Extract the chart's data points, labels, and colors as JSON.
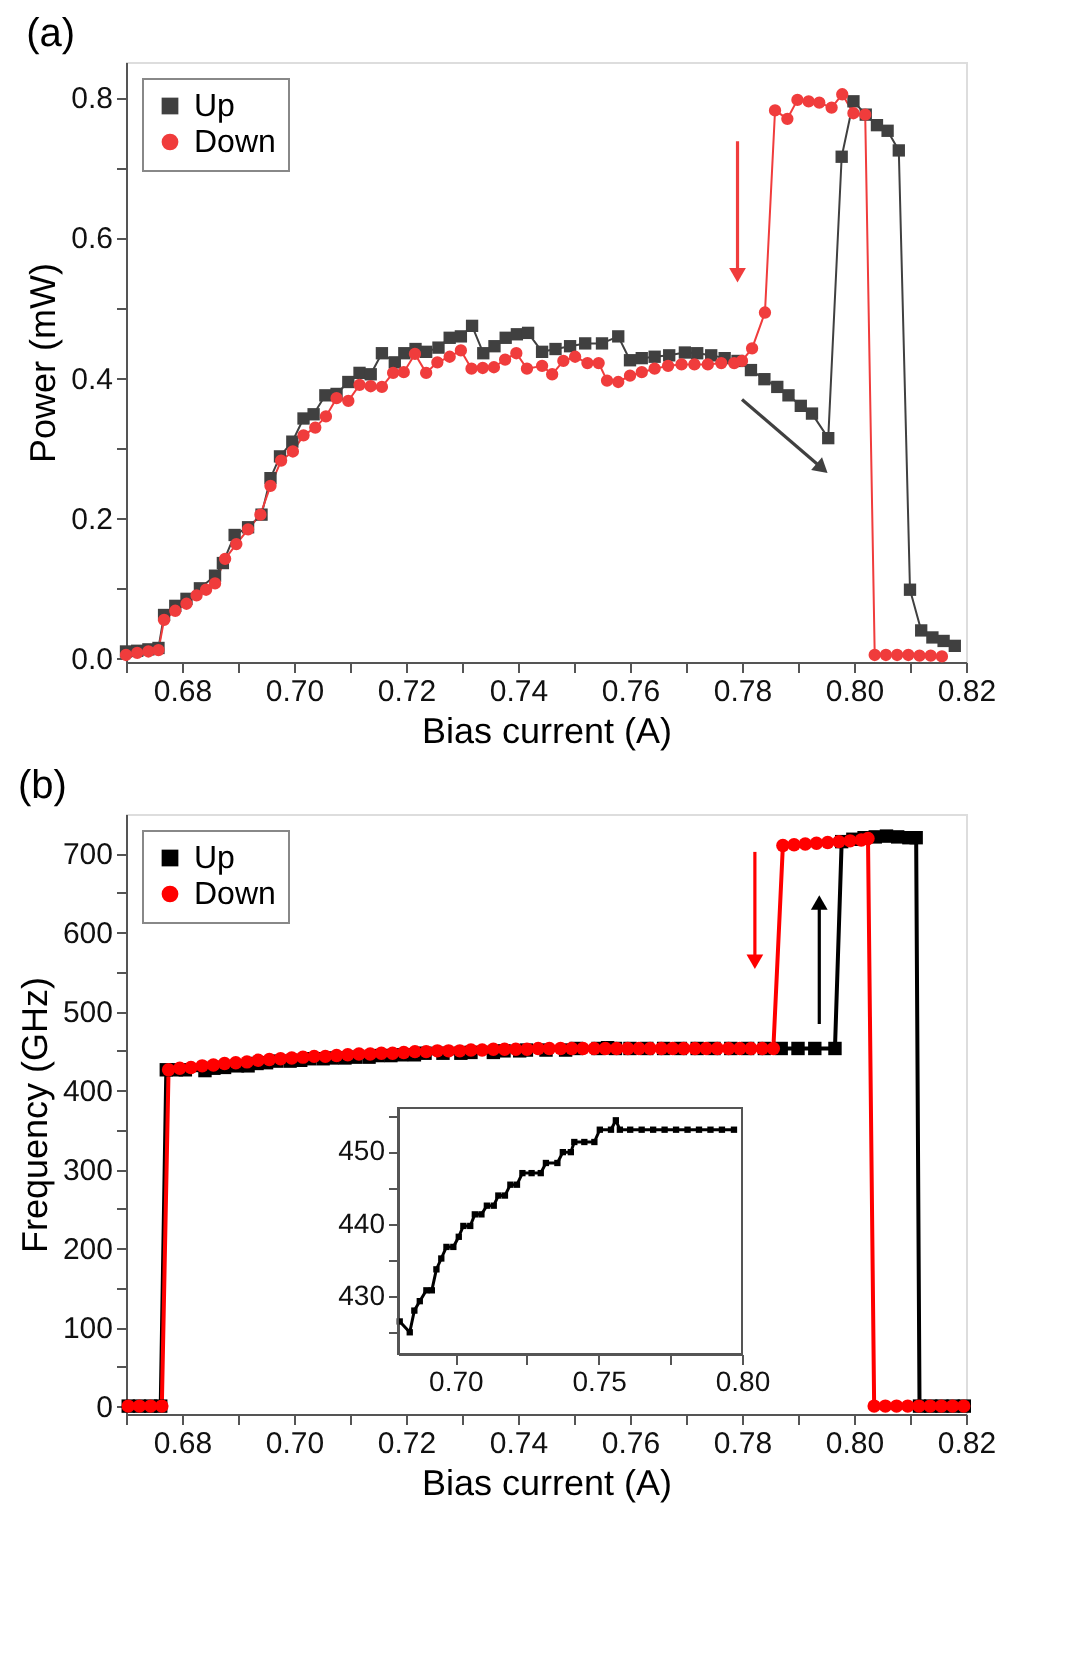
{
  "chart_data": [
    {
      "type": "line",
      "title": "(a)",
      "xlabel": "Bias current (A)",
      "ylabel": "Power (mW)",
      "legend": "top left",
      "xlim": [
        0.67,
        0.82
      ],
      "ylim": [
        -0.005,
        0.85
      ],
      "xticks": [
        {
          "value": 0.67,
          "label": null
        },
        0.68,
        {
          "value": 0.69,
          "label": null
        },
        {
          "value": 0.7,
          "label": "0.70"
        },
        {
          "value": 0.71,
          "label": null
        },
        0.72,
        {
          "value": 0.73,
          "label": null
        },
        0.74,
        {
          "value": 0.75,
          "label": null
        },
        0.76,
        {
          "value": 0.77,
          "label": null
        },
        0.78,
        {
          "value": 0.79,
          "label": null
        },
        {
          "value": 0.8,
          "label": "0.80"
        },
        {
          "value": 0.81,
          "label": null
        },
        0.82
      ],
      "yticks": [
        {
          "value": 0,
          "label": "0.0"
        },
        {
          "value": 0.1,
          "label": null
        },
        0.2,
        {
          "value": 0.3,
          "label": null
        },
        0.4,
        {
          "value": 0.5,
          "label": null
        },
        0.6,
        {
          "value": 0.7,
          "label": null
        },
        0.8
      ],
      "series": [
        {
          "name": "Up",
          "color": "#404040",
          "marker": "square",
          "x": [
            0.67,
            0.672,
            0.674,
            0.6758,
            0.6768,
            0.6788,
            0.6808,
            0.6832,
            0.6859,
            0.6873,
            0.6894,
            0.6918,
            0.6942,
            0.6958,
            0.6975,
            0.6997,
            0.7017,
            0.7035,
            0.7056,
            0.7076,
            0.7097,
            0.7117,
            0.7137,
            0.7157,
            0.718,
            0.7197,
            0.7217,
            0.7236,
            0.7258,
            0.7278,
            0.7298,
            0.7318,
            0.7338,
            0.7358,
            0.7378,
            0.7398,
            0.7418,
            0.7443,
            0.7467,
            0.7493,
            0.752,
            0.755,
            0.7579,
            0.76,
            0.7621,
            0.7644,
            0.767,
            0.7698,
            0.772,
            0.7745,
            0.7769,
            0.7792,
            0.7816,
            0.784,
            0.7863,
            0.7883,
            0.7905,
            0.7925,
            0.7954,
            0.7978,
            0.7999,
            0.8021,
            0.8041,
            0.806,
            0.808,
            0.81,
            0.812,
            0.814,
            0.816,
            0.818
          ],
          "values": [
            0.01,
            0.011,
            0.013,
            0.015,
            0.062,
            0.075,
            0.085,
            0.1,
            0.118,
            0.136,
            0.176,
            0.187,
            0.205,
            0.257,
            0.288,
            0.309,
            0.342,
            0.348,
            0.375,
            0.377,
            0.394,
            0.407,
            0.405,
            0.435,
            0.422,
            0.435,
            0.441,
            0.437,
            0.443,
            0.457,
            0.459,
            0.474,
            0.435,
            0.445,
            0.457,
            0.462,
            0.464,
            0.437,
            0.441,
            0.445,
            0.449,
            0.449,
            0.459,
            0.425,
            0.428,
            0.43,
            0.432,
            0.436,
            0.435,
            0.432,
            0.428,
            0.424,
            0.411,
            0.398,
            0.387,
            0.375,
            0.36,
            0.349,
            0.314,
            0.715,
            0.794,
            0.775,
            0.76,
            0.752,
            0.724,
            0.098,
            0.04,
            0.03,
            0.025,
            0.018
          ]
        },
        {
          "name": "Down",
          "color": "#f03c3c",
          "marker": "circle",
          "x": [
            0.67,
            0.672,
            0.674,
            0.6758,
            0.6768,
            0.6788,
            0.6808,
            0.6826,
            0.6843,
            0.6859,
            0.6877,
            0.6897,
            0.6918,
            0.694,
            0.6958,
            0.6977,
            0.6998,
            0.7017,
            0.7038,
            0.7057,
            0.7076,
            0.7097,
            0.7117,
            0.7137,
            0.7157,
            0.7177,
            0.7196,
            0.7216,
            0.7236,
            0.7256,
            0.7278,
            0.7298,
            0.7317,
            0.7337,
            0.7357,
            0.7377,
            0.7397,
            0.7416,
            0.7443,
            0.7461,
            0.7481,
            0.7502,
            0.7524,
            0.7544,
            0.7559,
            0.7579,
            0.76,
            0.7621,
            0.7644,
            0.7668,
            0.7692,
            0.7715,
            0.7739,
            0.7763,
            0.7786,
            0.78,
            0.7818,
            0.7841,
            0.7859,
            0.7881,
            0.7899,
            0.7919,
            0.7938,
            0.796,
            0.7979,
            0.7999,
            0.802,
            0.8037,
            0.8057,
            0.8077,
            0.8097,
            0.8117,
            0.8137,
            0.8157
          ],
          "values": [
            0.005,
            0.008,
            0.01,
            0.012,
            0.055,
            0.068,
            0.078,
            0.09,
            0.098,
            0.107,
            0.142,
            0.163,
            0.184,
            0.205,
            0.246,
            0.282,
            0.295,
            0.318,
            0.329,
            0.345,
            0.371,
            0.367,
            0.39,
            0.388,
            0.387,
            0.407,
            0.408,
            0.434,
            0.407,
            0.422,
            0.43,
            0.439,
            0.413,
            0.414,
            0.415,
            0.426,
            0.435,
            0.413,
            0.417,
            0.405,
            0.424,
            0.43,
            0.421,
            0.421,
            0.396,
            0.394,
            0.403,
            0.408,
            0.413,
            0.417,
            0.419,
            0.419,
            0.419,
            0.421,
            0.421,
            0.424,
            0.442,
            0.493,
            0.781,
            0.769,
            0.796,
            0.794,
            0.792,
            0.785,
            0.804,
            0.777,
            0.775,
            0.005,
            0.005,
            0.005,
            0.005,
            0.004,
            0.004,
            0.003
          ]
        }
      ]
    },
    {
      "type": "line",
      "title": "(b)",
      "xlabel": "Bias current (A)",
      "ylabel": "Frequency (GHz)",
      "legend": "top left",
      "xlim": [
        0.67,
        0.82
      ],
      "ylim": [
        -10,
        750
      ],
      "xticks": [
        {
          "value": 0.67,
          "label": null
        },
        0.68,
        {
          "value": 0.69,
          "label": null
        },
        {
          "value": 0.7,
          "label": "0.70"
        },
        {
          "value": 0.71,
          "label": null
        },
        0.72,
        {
          "value": 0.73,
          "label": null
        },
        0.74,
        {
          "value": 0.75,
          "label": null
        },
        0.76,
        {
          "value": 0.77,
          "label": null
        },
        0.78,
        {
          "value": 0.79,
          "label": null
        },
        {
          "value": 0.8,
          "label": "0.80"
        },
        {
          "value": 0.81,
          "label": null
        },
        0.82
      ],
      "yticks": [
        0,
        {
          "value": 50,
          "label": null
        },
        100,
        {
          "value": 150,
          "label": null
        },
        200,
        {
          "value": 250,
          "label": null
        },
        300,
        {
          "value": 350,
          "label": null
        },
        400,
        {
          "value": 450,
          "label": null
        },
        500,
        {
          "value": 550,
          "label": null
        },
        600,
        {
          "value": 650,
          "label": null
        },
        700
      ],
      "series": [
        {
          "name": "Up",
          "color": "#000000",
          "marker": "square",
          "x": [
            0.6704,
            0.6724,
            0.6744,
            0.6762,
            0.6772,
            0.679,
            0.6806,
            0.6841,
            0.6857,
            0.6876,
            0.6899,
            0.6918,
            0.6934,
            0.6951,
            0.6969,
            0.6993,
            0.7012,
            0.7028,
            0.7052,
            0.7068,
            0.7091,
            0.711,
            0.7134,
            0.715,
            0.7173,
            0.7192,
            0.7215,
            0.7234,
            0.7266,
            0.7298,
            0.7316,
            0.7356,
            0.7375,
            0.7403,
            0.7415,
            0.745,
            0.7485,
            0.7504,
            0.7543,
            0.756,
            0.7574,
            0.76,
            0.763,
            0.766,
            0.769,
            0.772,
            0.775,
            0.778,
            0.781,
            0.784,
            0.787,
            0.79,
            0.793,
            0.7966,
            0.7978,
            0.7998,
            0.8018,
            0.8038,
            0.8058,
            0.8078,
            0.8098,
            0.8111,
            0.8117,
            0.8137,
            0.8157,
            0.8177,
            0.8197
          ],
          "values": [
            0,
            0,
            0,
            0,
            426,
            426,
            426,
            425,
            428,
            429,
            431,
            431,
            434,
            435,
            437,
            437,
            438,
            440,
            440,
            441,
            441,
            442,
            442,
            444,
            444,
            445,
            445,
            447,
            447,
            447,
            448,
            448,
            450,
            450,
            451,
            451,
            451,
            453,
            453,
            454,
            453,
            453,
            453,
            453,
            453,
            453,
            453,
            453,
            453,
            453,
            453,
            453,
            453,
            453,
            715,
            718,
            720,
            721,
            722,
            721,
            720,
            720,
            0,
            0,
            0,
            0,
            0
          ]
        },
        {
          "name": "Down",
          "color": "#ff0000",
          "marker": "circle",
          "x": [
            0.6704,
            0.6724,
            0.6744,
            0.6764,
            0.6776,
            0.6796,
            0.6816,
            0.6836,
            0.6856,
            0.6876,
            0.6896,
            0.6916,
            0.6936,
            0.6956,
            0.6976,
            0.6996,
            0.7016,
            0.7036,
            0.7056,
            0.7076,
            0.7096,
            0.7116,
            0.7136,
            0.7156,
            0.7176,
            0.7196,
            0.7216,
            0.7236,
            0.7256,
            0.7276,
            0.7296,
            0.7316,
            0.7336,
            0.7356,
            0.7376,
            0.7396,
            0.7416,
            0.7436,
            0.7456,
            0.7476,
            0.7496,
            0.7516,
            0.7536,
            0.7556,
            0.7576,
            0.7596,
            0.7616,
            0.7636,
            0.7656,
            0.7676,
            0.7696,
            0.7716,
            0.7736,
            0.7756,
            0.7776,
            0.7796,
            0.7816,
            0.7836,
            0.7856,
            0.7873,
            0.7893,
            0.7913,
            0.7933,
            0.7953,
            0.7973,
            0.7993,
            0.8013,
            0.8025,
            0.8036,
            0.8056,
            0.8076,
            0.8096,
            0.8116,
            0.8136,
            0.8156,
            0.8176,
            0.8196
          ],
          "values": [
            0,
            0,
            0,
            0,
            426,
            428,
            429,
            431,
            432,
            434,
            435,
            436,
            438,
            439,
            440,
            441,
            442,
            443,
            443,
            444,
            445,
            446,
            446,
            447,
            447,
            448,
            449,
            449,
            450,
            450,
            450,
            451,
            451,
            452,
            452,
            452,
            452,
            453,
            453,
            453,
            453,
            453,
            453,
            453,
            453,
            453,
            453,
            453,
            453,
            453,
            453,
            453,
            453,
            453,
            453,
            453,
            453,
            453,
            453,
            710,
            711,
            712,
            713,
            714,
            715,
            716,
            717,
            719,
            0,
            0,
            0,
            0,
            0,
            0,
            0,
            0,
            0
          ]
        }
      ]
    },
    {
      "type": "line",
      "xlim": [
        0.68,
        0.8
      ],
      "ylim": [
        422,
        456
      ],
      "xticks": [
        {
          "value": 0.7,
          "label": "0.70"
        },
        {
          "value": 0.725,
          "label": null
        },
        0.75,
        {
          "value": 0.775,
          "label": null
        },
        {
          "value": 0.8,
          "label": "0.80"
        }
      ],
      "yticks": [
        {
          "value": 425,
          "label": null
        },
        430,
        {
          "value": 435,
          "label": null
        },
        440,
        {
          "value": 445,
          "label": null
        },
        450,
        {
          "value": 455,
          "label": null
        }
      ],
      "series": [
        {
          "color": "#000000",
          "marker": "square",
          "x": [
            0.6806,
            0.6841,
            0.6857,
            0.6876,
            0.6899,
            0.6918,
            0.6934,
            0.6951,
            0.6969,
            0.6993,
            0.7012,
            0.7028,
            0.7052,
            0.7068,
            0.7091,
            0.711,
            0.7134,
            0.715,
            0.7173,
            0.7192,
            0.7215,
            0.7234,
            0.7266,
            0.7298,
            0.7316,
            0.7356,
            0.7375,
            0.7403,
            0.7415,
            0.745,
            0.7485,
            0.7504,
            0.7543,
            0.756,
            0.7574,
            0.761,
            0.765,
            0.769,
            0.773,
            0.777,
            0.781,
            0.785,
            0.789,
            0.793,
            0.7972
          ],
          "values": [
            426.5,
            425,
            428,
            429.3,
            430.8,
            430.8,
            433.7,
            435.2,
            436.8,
            436.8,
            438.2,
            439.7,
            439.7,
            441.3,
            441.3,
            442.5,
            442.5,
            443.9,
            443.9,
            445.4,
            445.4,
            447,
            447,
            447,
            448.4,
            448.4,
            449.9,
            449.9,
            451.3,
            451.3,
            451.3,
            453,
            453,
            454.3,
            453,
            453,
            453,
            453,
            453,
            453,
            453,
            453,
            453,
            453,
            453
          ]
        }
      ]
    }
  ]
}
